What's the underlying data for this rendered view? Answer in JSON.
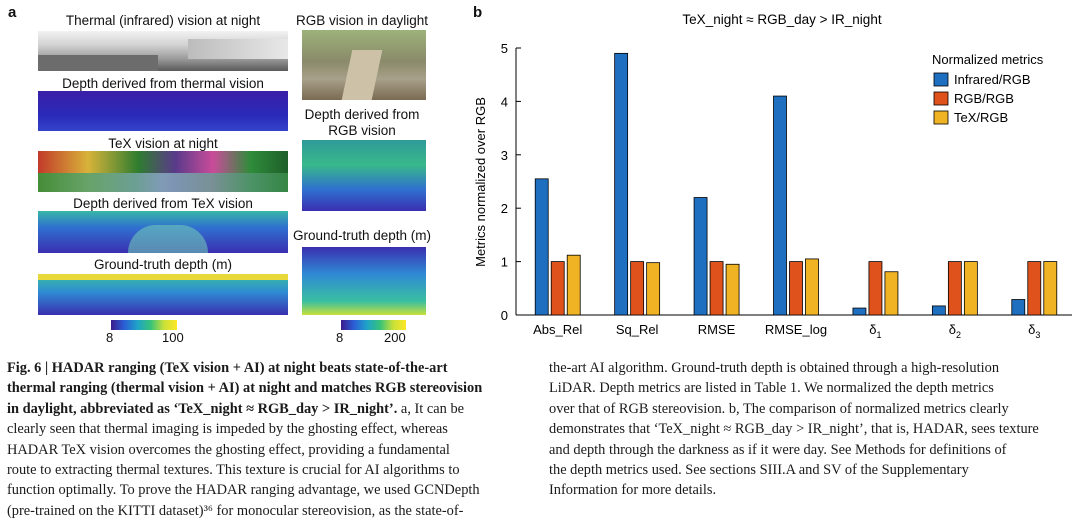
{
  "panel_a": {
    "letter": "a",
    "left_titles": [
      "Thermal (infrared) vision at night",
      "Depth derived from thermal vision",
      "TeX vision at night",
      "Depth derived from TeX vision",
      "Ground-truth depth (m)"
    ],
    "right_titles": [
      "RGB vision in daylight",
      "Depth derived from\nRGB vision",
      "Ground-truth depth (m)"
    ],
    "left_colorbar": {
      "min": "8",
      "max": "100"
    },
    "right_colorbar": {
      "min": "8",
      "max": "200"
    }
  },
  "panel_b": {
    "letter": "b"
  },
  "chart_data": {
    "type": "bar",
    "title": "TeX_night ≈ RGB_day > IR_night",
    "ylabel": "Metrics normalized over RGB",
    "xlabel": "",
    "ylim": [
      0,
      5
    ],
    "yticks": [
      0,
      1,
      2,
      3,
      4,
      5
    ],
    "categories": [
      "Abs_Rel",
      "Sq_Rel",
      "RMSE",
      "RMSE_log",
      "δ1",
      "δ2",
      "δ3"
    ],
    "category_base": [
      "Abs_Rel",
      "Sq_Rel",
      "RMSE",
      "RMSE_log",
      "δ",
      "δ",
      "δ"
    ],
    "category_sub": [
      "",
      "",
      "",
      "",
      "1",
      "2",
      "3"
    ],
    "legend_title": "Normalized metrics",
    "legend_position": "top-right",
    "grid": false,
    "series": [
      {
        "name": "Infrared/RGB",
        "color": "#1f6fc1",
        "values": [
          2.55,
          4.9,
          2.2,
          4.1,
          0.13,
          0.17,
          0.29
        ]
      },
      {
        "name": "RGB/RGB",
        "color": "#e0521c",
        "values": [
          1.0,
          1.0,
          1.0,
          1.0,
          1.0,
          1.0,
          1.0
        ]
      },
      {
        "name": "TeX/RGB",
        "color": "#f0b323",
        "values": [
          1.12,
          0.98,
          0.95,
          1.05,
          0.81,
          1.0,
          1.0
        ]
      }
    ]
  },
  "caption": {
    "fig_label": "Fig. 6 | HADAR ranging (TeX vision + AI) at night beats state-of-the-art thermal ranging (thermal vision + AI) at night and matches RGB stereovision in daylight, abbreviated as ‘TeX_night ≈ RGB_day > IR_night’.",
    "left_lines_bold": [
      "Fig. 6 | HADAR ranging (TeX vision + AI) at night beats state-of-the-art",
      "thermal ranging (thermal vision + AI) at night and matches RGB stereovision",
      "in daylight, abbreviated as ‘TeX_night ≈ RGB_day > IR_night’."
    ],
    "line3_rest": " a, It can be",
    "left_lines": [
      "clearly seen that thermal imaging is impeded by the ghosting effect, whereas",
      "HADAR TeX vision overcomes the ghosting effect, providing a fundamental",
      "route to extracting thermal textures. This texture is crucial for AI algorithms to",
      "function optimally. To prove the HADAR ranging advantage, we used GCNDepth",
      "(pre-trained on the KITTI dataset)³⁶ for monocular stereovision, as the state-of-"
    ],
    "right_lines": [
      "the-art AI algorithm. Ground-truth depth is obtained through a high-resolution",
      "LiDAR. Depth metrics are listed in Table 1. We normalized the depth metrics",
      "over that of RGB stereovision. b, The comparison of normalized metrics clearly",
      "demonstrates that ‘TeX_night ≈ RGB_day > IR_night’, that is, HADAR, sees texture",
      "and depth through the darkness as if it were day. See Methods for definitions of",
      "the depth metrics used. See sections SIII.A and SV of the Supplementary",
      "Information for more details."
    ]
  }
}
